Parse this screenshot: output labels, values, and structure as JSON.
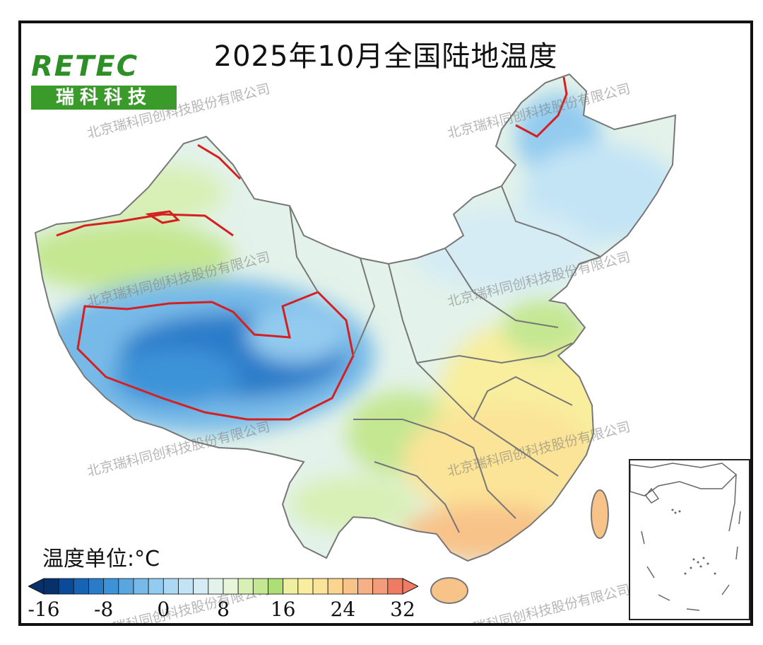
{
  "map_title": "2025年10月全国陆地温度",
  "logo": {
    "top_text": "RETEC",
    "bottom_text": "瑞科科技"
  },
  "watermark": "北京瑞科同创科技股份有限公司",
  "legend": {
    "title": "温度单位:°C",
    "tick_labels": [
      "-16",
      "-8",
      "0",
      "8",
      "16",
      "24",
      "32"
    ],
    "min": -16,
    "max": 32,
    "step": 2,
    "colors": [
      "#08306b",
      "#0b4a99",
      "#1763b5",
      "#2a7cc9",
      "#3e93d8",
      "#5aa7e0",
      "#77bae8",
      "#93cbef",
      "#acd8f3",
      "#c3e4f5",
      "#d5ecf4",
      "#e3f2ea",
      "#e8f5d8",
      "#d8f0b6",
      "#c4e792",
      "#aedf76",
      "#eef0a0",
      "#f8ee9e",
      "#fbe397",
      "#fbd48f",
      "#f8c389",
      "#f6b085",
      "#f49b7b",
      "#f07b64"
    ]
  },
  "colors": {
    "contour_line": "#d42020",
    "boundary_line": "#777777"
  }
}
